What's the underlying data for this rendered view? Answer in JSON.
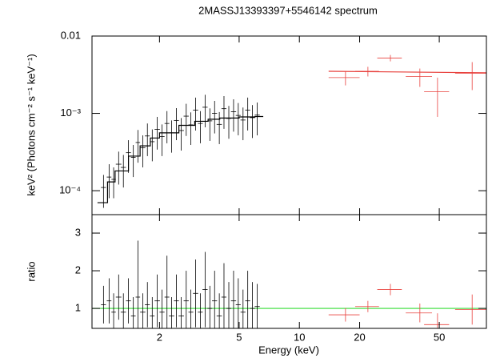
{
  "chart_data": [
    {
      "type": "errorbar",
      "title": "2MASSJ13393397+5546142 spectrum",
      "y_label": "keV² (Photons cm⁻² s⁻¹ keV⁻¹)",
      "xlim": [
        0.92,
        86
      ],
      "ylim": [
        4.9e-05,
        0.01
      ],
      "log_x": true,
      "log_y": true,
      "yticks": [
        0.01,
        {
          "value": 0.001,
          "label": "10⁻³"
        },
        {
          "value": 0.0001,
          "label": "10⁻⁴"
        }
      ],
      "series": [
        {
          "color": "#000000",
          "x": [
            1.05,
            1.12,
            1.18,
            1.25,
            1.32,
            1.4,
            1.48,
            1.56,
            1.65,
            1.74,
            1.84,
            1.95,
            2.06,
            2.18,
            2.3,
            2.43,
            2.57,
            2.72,
            2.87,
            3.03,
            3.2,
            3.38,
            3.57,
            3.77,
            3.98,
            4.2,
            4.44,
            4.69,
            4.95,
            5.23,
            5.52,
            5.83,
            6.16
          ],
          "xerr": [
            0.03,
            0.03,
            0.03,
            0.04,
            0.04,
            0.04,
            0.04,
            0.04,
            0.05,
            0.05,
            0.05,
            0.06,
            0.06,
            0.06,
            0.07,
            0.07,
            0.08,
            0.08,
            0.08,
            0.09,
            0.09,
            0.1,
            0.1,
            0.11,
            0.12,
            0.12,
            0.13,
            0.14,
            0.14,
            0.15,
            0.16,
            0.17,
            0.18
          ],
          "values": [
            0.00011,
            0.00015,
            0.00014,
            0.00022,
            0.0002,
            0.00031,
            0.00027,
            0.00042,
            0.00036,
            0.00051,
            0.00043,
            0.00062,
            0.0005,
            0.00074,
            0.00056,
            0.00081,
            0.0006,
            0.00092,
            0.00071,
            0.0011,
            0.00074,
            0.0012,
            0.0008,
            0.001,
            0.00072,
            0.00115,
            0.00086,
            0.00105,
            0.00094,
            0.00082,
            0.0011,
            0.00088,
            0.00095
          ],
          "yerr": [
            5e-05,
            7e-05,
            6e-05,
            0.0001,
            9e-05,
            0.00014,
            0.00012,
            0.00019,
            0.00016,
            0.00023,
            0.00019,
            0.00028,
            0.00022,
            0.00033,
            0.00025,
            0.00036,
            0.00027,
            0.00041,
            0.00032,
            0.0005,
            0.00033,
            0.00054,
            0.00036,
            0.00045,
            0.00032,
            0.00052,
            0.00039,
            0.00047,
            0.00042,
            0.00037,
            0.0005,
            0.0004,
            0.00043
          ],
          "model": {
            "x": [
              0.98,
              1.1,
              1.2,
              1.4,
              1.6,
              1.8,
              2.0,
              2.5,
              3,
              3.5,
              4,
              5,
              6,
              6.6
            ],
            "values": [
              7e-05,
              0.00013,
              0.00018,
              0.00028,
              0.00038,
              0.00048,
              0.00056,
              0.0007,
              0.00079,
              0.00084,
              0.00087,
              0.0009,
              0.00091,
              0.00091
            ]
          }
        },
        {
          "color": "#e8403c",
          "x": [
            17,
            22,
            28.5,
            40,
            49,
            73
          ],
          "xerr": [
            3,
            3,
            4,
            6,
            7,
            13
          ],
          "values": [
            0.0029,
            0.0035,
            0.0052,
            0.003,
            0.0019,
            0.0033
          ],
          "yerr": [
            0.0006,
            0.0005,
            0.0005,
            0.0008,
            0.001,
            0.0013
          ],
          "model": {
            "x": [
              14,
              86
            ],
            "values": [
              0.0035,
              0.00335
            ]
          }
        }
      ]
    },
    {
      "type": "errorbar",
      "y_label": "ratio",
      "x_label": "Energy (keV)",
      "xlim": [
        0.92,
        86
      ],
      "ylim": [
        0.47,
        3.49
      ],
      "log_x": true,
      "xticks": [
        2,
        5,
        10,
        20,
        50
      ],
      "yticks": [
        1,
        2,
        3
      ],
      "ref_line": 1,
      "ref_color": "#33dd33",
      "series": [
        {
          "color": "#000000",
          "x": [
            1.05,
            1.12,
            1.18,
            1.25,
            1.32,
            1.4,
            1.48,
            1.56,
            1.65,
            1.74,
            1.84,
            1.95,
            2.06,
            2.18,
            2.3,
            2.43,
            2.57,
            2.72,
            2.87,
            3.03,
            3.2,
            3.38,
            3.57,
            3.77,
            3.98,
            4.2,
            4.44,
            4.69,
            4.95,
            5.23,
            5.52,
            5.83,
            6.16
          ],
          "xerr": [
            0.03,
            0.03,
            0.03,
            0.04,
            0.04,
            0.04,
            0.04,
            0.04,
            0.05,
            0.05,
            0.05,
            0.06,
            0.06,
            0.06,
            0.07,
            0.07,
            0.08,
            0.08,
            0.08,
            0.09,
            0.09,
            0.1,
            0.1,
            0.11,
            0.12,
            0.12,
            0.13,
            0.14,
            0.14,
            0.15,
            0.16,
            0.17,
            0.18
          ],
          "values": [
            1.1,
            1.2,
            0.9,
            1.3,
            0.9,
            1.2,
            0.8,
            1.3,
            0.9,
            1.1,
            0.8,
            1.2,
            0.9,
            1.3,
            0.8,
            1.2,
            0.8,
            1.2,
            0.9,
            1.4,
            0.9,
            1.5,
            1.0,
            1.2,
            0.8,
            1.3,
            1.0,
            1.2,
            1.1,
            0.9,
            1.2,
            1.0,
            1.05
          ],
          "yerr": [
            0.5,
            0.6,
            0.5,
            0.6,
            0.5,
            0.6,
            0.5,
            1.5,
            0.5,
            0.6,
            0.5,
            0.7,
            0.6,
            1.1,
            0.5,
            0.7,
            0.5,
            0.8,
            0.6,
            0.9,
            0.5,
            1.0,
            0.6,
            0.8,
            0.6,
            0.9,
            0.7,
            0.8,
            0.7,
            0.6,
            0.8,
            0.7,
            0.6
          ]
        },
        {
          "color": "#e8403c",
          "x": [
            17,
            22,
            28.5,
            40,
            49,
            73
          ],
          "xerr": [
            3,
            3,
            4,
            6,
            7,
            13
          ],
          "values": [
            0.83,
            1.05,
            1.5,
            0.88,
            0.57,
            0.97
          ],
          "yerr": [
            0.18,
            0.15,
            0.15,
            0.25,
            0.3,
            0.4
          ]
        }
      ]
    }
  ]
}
